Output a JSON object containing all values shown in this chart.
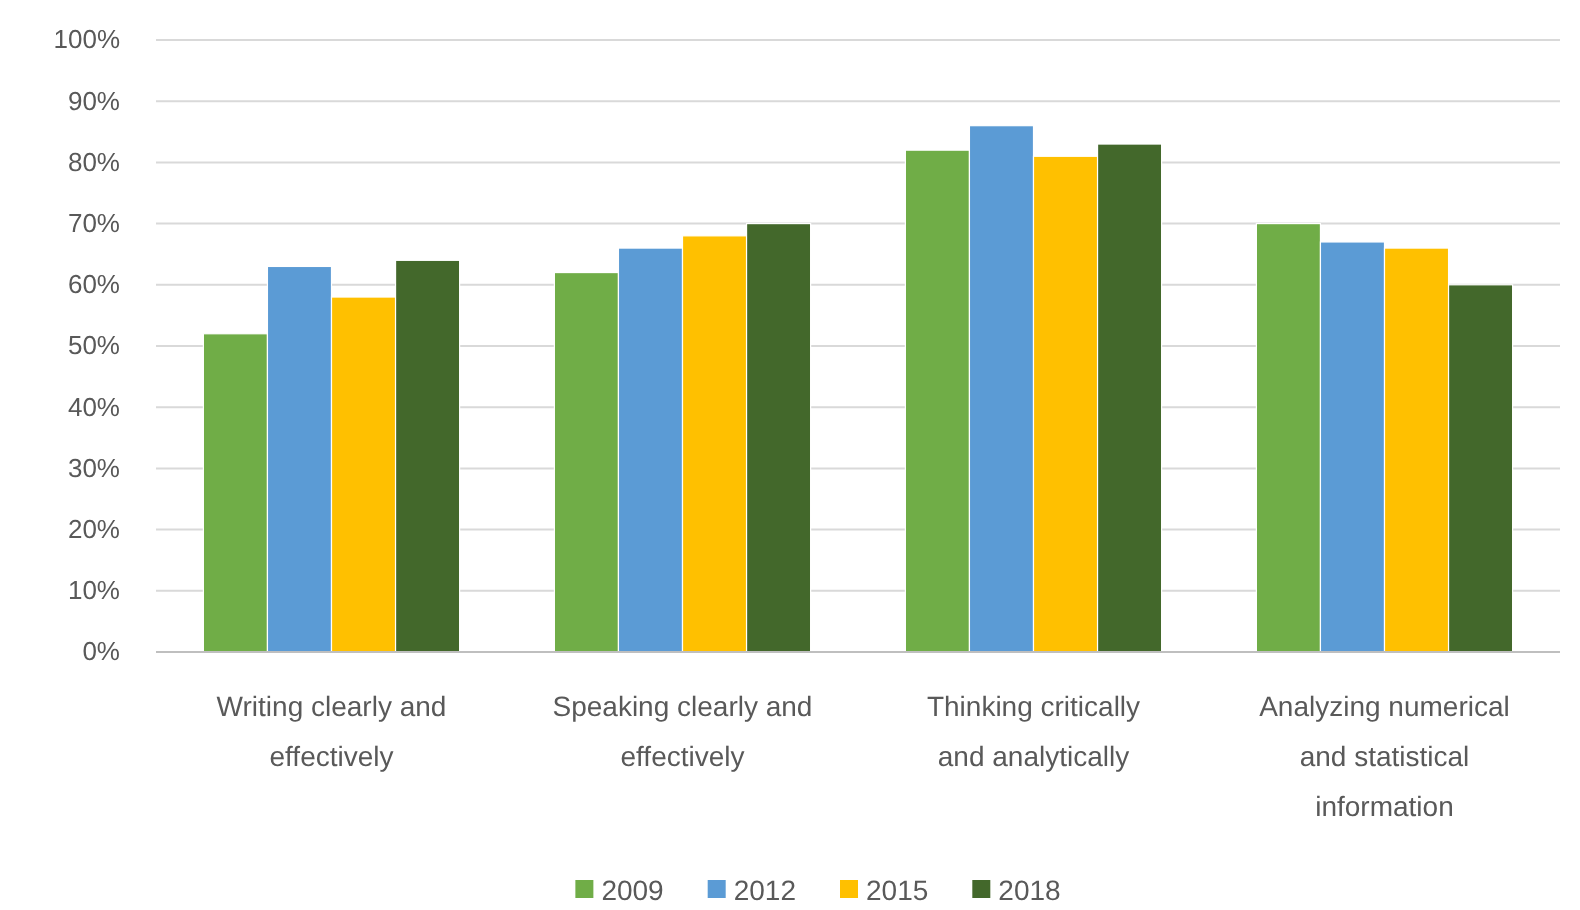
{
  "chart_data": {
    "type": "bar",
    "categories": [
      "Writing clearly and effectively",
      "Speaking clearly and effectively",
      "Thinking critically and analytically",
      "Analyzing numerical and statistical information"
    ],
    "series": [
      {
        "name": "2009",
        "color": "#70ad47",
        "values": [
          52,
          62,
          82,
          70
        ]
      },
      {
        "name": "2012",
        "color": "#5b9bd5",
        "values": [
          63,
          66,
          86,
          67
        ]
      },
      {
        "name": "2015",
        "color": "#ffc000",
        "values": [
          58,
          68,
          81,
          66
        ]
      },
      {
        "name": "2018",
        "color": "#43682b",
        "values": [
          64,
          70,
          83,
          60
        ]
      }
    ],
    "ylim": [
      0,
      100
    ],
    "yticks": [
      {
        "value": 0,
        "label": "0%"
      },
      {
        "value": 10,
        "label": "10%"
      },
      {
        "value": 20,
        "label": "20%"
      },
      {
        "value": 30,
        "label": "30%"
      },
      {
        "value": 40,
        "label": "40%"
      },
      {
        "value": 50,
        "label": "50%"
      },
      {
        "value": 60,
        "label": "60%"
      },
      {
        "value": 70,
        "label": "70%"
      },
      {
        "value": 80,
        "label": "80%"
      },
      {
        "value": 90,
        "label": "90%"
      },
      {
        "value": 100,
        "label": "100%"
      }
    ],
    "grid": "y",
    "legend": "bottom"
  }
}
